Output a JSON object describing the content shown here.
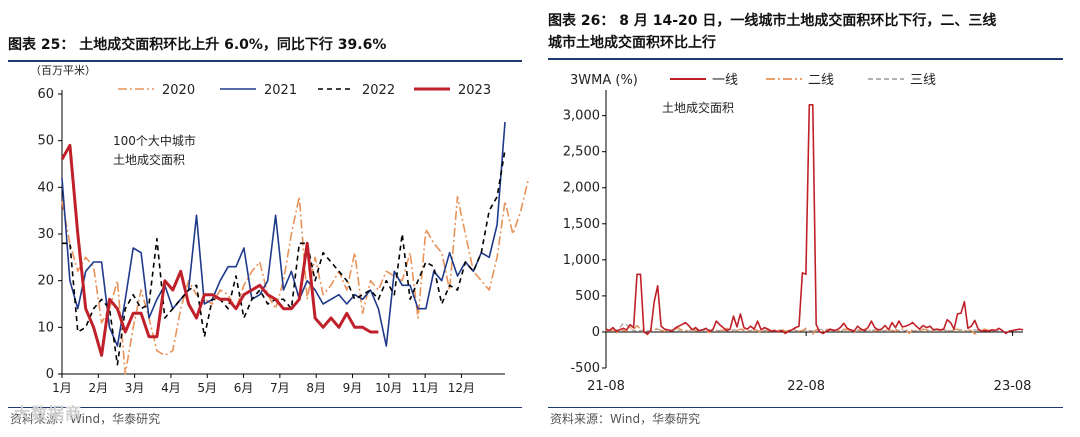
{
  "left": {
    "title": "图表 25：  土地成交面积环比上升 6.0%，同比下行 39.6%",
    "source": "资料来源：Wind，华泰研究",
    "watermark": "大数据商",
    "chart_data": {
      "type": "line",
      "ylabel": "（百万平米）",
      "annotation": [
        "100个大中城市",
        "土地成交面积"
      ],
      "ylim": [
        0,
        60
      ],
      "yticks": [
        0,
        10,
        20,
        30,
        40,
        50,
        60
      ],
      "xticks": [
        "1月",
        "2月",
        "3月",
        "4月",
        "5月",
        "6月",
        "7月",
        "8月",
        "9月",
        "10月",
        "11月",
        "12月"
      ],
      "legend_position": "top",
      "series": [
        {
          "name": "2020",
          "color": "#e8935a",
          "dash": "9,3,2,3",
          "width": 1.6,
          "values": [
            37,
            28,
            22,
            25,
            23,
            11,
            14,
            20,
            0,
            10,
            18,
            12,
            5,
            4,
            5,
            14,
            20,
            17,
            16,
            15,
            18,
            17,
            14,
            19,
            22,
            24,
            17,
            14,
            20,
            30,
            38,
            16,
            25,
            17,
            19,
            22,
            18,
            26,
            13,
            20,
            18,
            22,
            21,
            20,
            26,
            12,
            31,
            28,
            26,
            18,
            38,
            30,
            22,
            20,
            18,
            25,
            37,
            30,
            35,
            42
          ]
        },
        {
          "name": "2021",
          "color": "#1f3a8a",
          "dash": "",
          "width": 1.6,
          "values": [
            42,
            20,
            14,
            22,
            24,
            24,
            10,
            6,
            16,
            27,
            26,
            12,
            16,
            19,
            14,
            16,
            18,
            34,
            15,
            16,
            20,
            23,
            23,
            27,
            16,
            17,
            20,
            34,
            18,
            22,
            16,
            20,
            18,
            15,
            16,
            17,
            15,
            17,
            16,
            18,
            14,
            6,
            22,
            19,
            19,
            14,
            14,
            22,
            20,
            26,
            21,
            24,
            22,
            26,
            25,
            32,
            54
          ]
        },
        {
          "name": "2022",
          "color": "#000000",
          "dash": "5,4",
          "width": 1.6,
          "values": [
            28,
            28,
            9,
            10,
            14,
            16,
            14,
            2,
            14,
            17,
            14,
            15,
            29,
            12,
            14,
            16,
            18,
            19,
            8,
            16,
            16,
            14,
            21,
            12,
            16,
            18,
            15,
            16,
            16,
            14,
            28,
            28,
            20,
            26,
            24,
            22,
            20,
            16,
            17,
            18,
            16,
            20,
            17,
            30,
            16,
            20,
            24,
            23,
            15,
            19,
            18,
            24,
            22,
            26,
            35,
            38,
            48
          ]
        },
        {
          "name": "2023",
          "color": "#c0202a",
          "dash": "",
          "width": 3,
          "values": [
            46,
            49,
            30,
            14,
            10,
            4,
            16,
            14,
            9,
            13,
            13,
            8,
            8,
            20,
            18,
            22,
            15,
            12,
            17,
            17,
            16,
            16,
            14,
            17,
            18,
            19,
            17,
            16,
            14,
            14,
            16,
            28,
            12,
            10,
            12,
            10,
            13,
            10,
            10,
            9,
            9
          ]
        }
      ]
    }
  },
  "right": {
    "title_line1": "图表 26：  8 月 14-20 日，一线城市土地成交面积环比下行，二、三线",
    "title_line2": "城市土地成交面积环比上行",
    "source": "资料来源：Wind，华泰研究",
    "chart_data": {
      "type": "line",
      "ylabel": "3WMA (%)",
      "annotation": "土地成交面积",
      "ylim": [
        -500,
        3300
      ],
      "yticks": [
        -500,
        0,
        500,
        1000,
        1500,
        2000,
        2500,
        3000
      ],
      "ytick_labels": [
        "-500",
        "0",
        "500",
        "1,000",
        "1,500",
        "2,000",
        "2,500",
        "3,000"
      ],
      "xticks": [
        "21-08",
        "22-08",
        "23-08"
      ],
      "legend_position": "top",
      "series": [
        {
          "name": "一线",
          "color": "#c0202a",
          "dash": "",
          "width": 1.6,
          "values": [
            40,
            20,
            60,
            10,
            30,
            50,
            30,
            100,
            60,
            800,
            800,
            0,
            -30,
            20,
            420,
            640,
            80,
            40,
            30,
            10,
            50,
            80,
            100,
            130,
            90,
            30,
            60,
            20,
            30,
            50,
            10,
            30,
            150,
            100,
            60,
            20,
            40,
            220,
            70,
            250,
            60,
            40,
            80,
            40,
            150,
            30,
            60,
            40,
            10,
            20,
            0,
            20,
            -20,
            10,
            30,
            60,
            80,
            820,
            800,
            3150,
            3150,
            100,
            0,
            -20,
            10,
            40,
            20,
            30,
            60,
            120,
            50,
            30,
            10,
            80,
            40,
            20,
            60,
            150,
            60,
            30,
            40,
            90,
            30,
            130,
            60,
            150,
            70,
            80,
            100,
            130,
            80,
            40,
            90,
            60,
            80,
            30,
            40,
            30,
            40,
            170,
            130,
            40,
            250,
            260,
            420,
            50,
            80,
            160,
            40,
            10,
            20,
            10,
            30,
            20,
            50,
            20,
            -20,
            10,
            20,
            30,
            40,
            30
          ]
        },
        {
          "name": "二线",
          "color": "#e8935a",
          "dash": "9,3,2,3",
          "width": 1.4,
          "values": [
            10,
            30,
            20,
            -20,
            40,
            20,
            10,
            60,
            30,
            90,
            40,
            10,
            -40,
            20,
            30,
            50,
            20,
            10,
            40,
            20,
            30,
            60,
            20,
            10,
            40,
            30,
            20,
            10,
            30,
            20,
            -10,
            40,
            20,
            30,
            20,
            50,
            30,
            10,
            20,
            40,
            30,
            20,
            10,
            30,
            20,
            -20,
            40,
            20,
            10,
            30,
            20,
            40,
            10,
            20,
            30,
            40,
            10,
            20,
            50,
            20,
            -30,
            30,
            20,
            10,
            40,
            20,
            30,
            20,
            10,
            40,
            30,
            20,
            -10,
            30,
            20,
            40,
            20,
            30,
            10,
            20,
            40,
            20,
            30,
            20,
            10,
            30,
            40,
            20,
            -20,
            30,
            20,
            10,
            40,
            30,
            20,
            10,
            30,
            20,
            40,
            20,
            10,
            30,
            40,
            20,
            10,
            30,
            20,
            -30,
            20,
            30,
            40,
            20,
            10,
            30
          ]
        },
        {
          "name": "三线",
          "color": "#a8a8a8",
          "dash": "5,3",
          "width": 1.4,
          "values": [
            20,
            10,
            40,
            20,
            60,
            120,
            100,
            40,
            20,
            10,
            20,
            30,
            20,
            10,
            30,
            40,
            20,
            10,
            20,
            30,
            10,
            20,
            30,
            20,
            10,
            20,
            30,
            20,
            10,
            40,
            30,
            20,
            10,
            20,
            30,
            20,
            10,
            30,
            20,
            40,
            20,
            10,
            20,
            30,
            20,
            10,
            20,
            30,
            20,
            10,
            30,
            20,
            10,
            20,
            30,
            20,
            10,
            20,
            30,
            20,
            10,
            20,
            30,
            40,
            20,
            10,
            20,
            30,
            20,
            10,
            20,
            30,
            20,
            10,
            30,
            20,
            10,
            20,
            30,
            20,
            10,
            20,
            30,
            20,
            40,
            20,
            10,
            20,
            30,
            20,
            10,
            20,
            30,
            20,
            10,
            20,
            30,
            20,
            10,
            30,
            20,
            10,
            20,
            30,
            20,
            10,
            20,
            30,
            20,
            10,
            20,
            30,
            20,
            10,
            20
          ]
        }
      ]
    }
  }
}
